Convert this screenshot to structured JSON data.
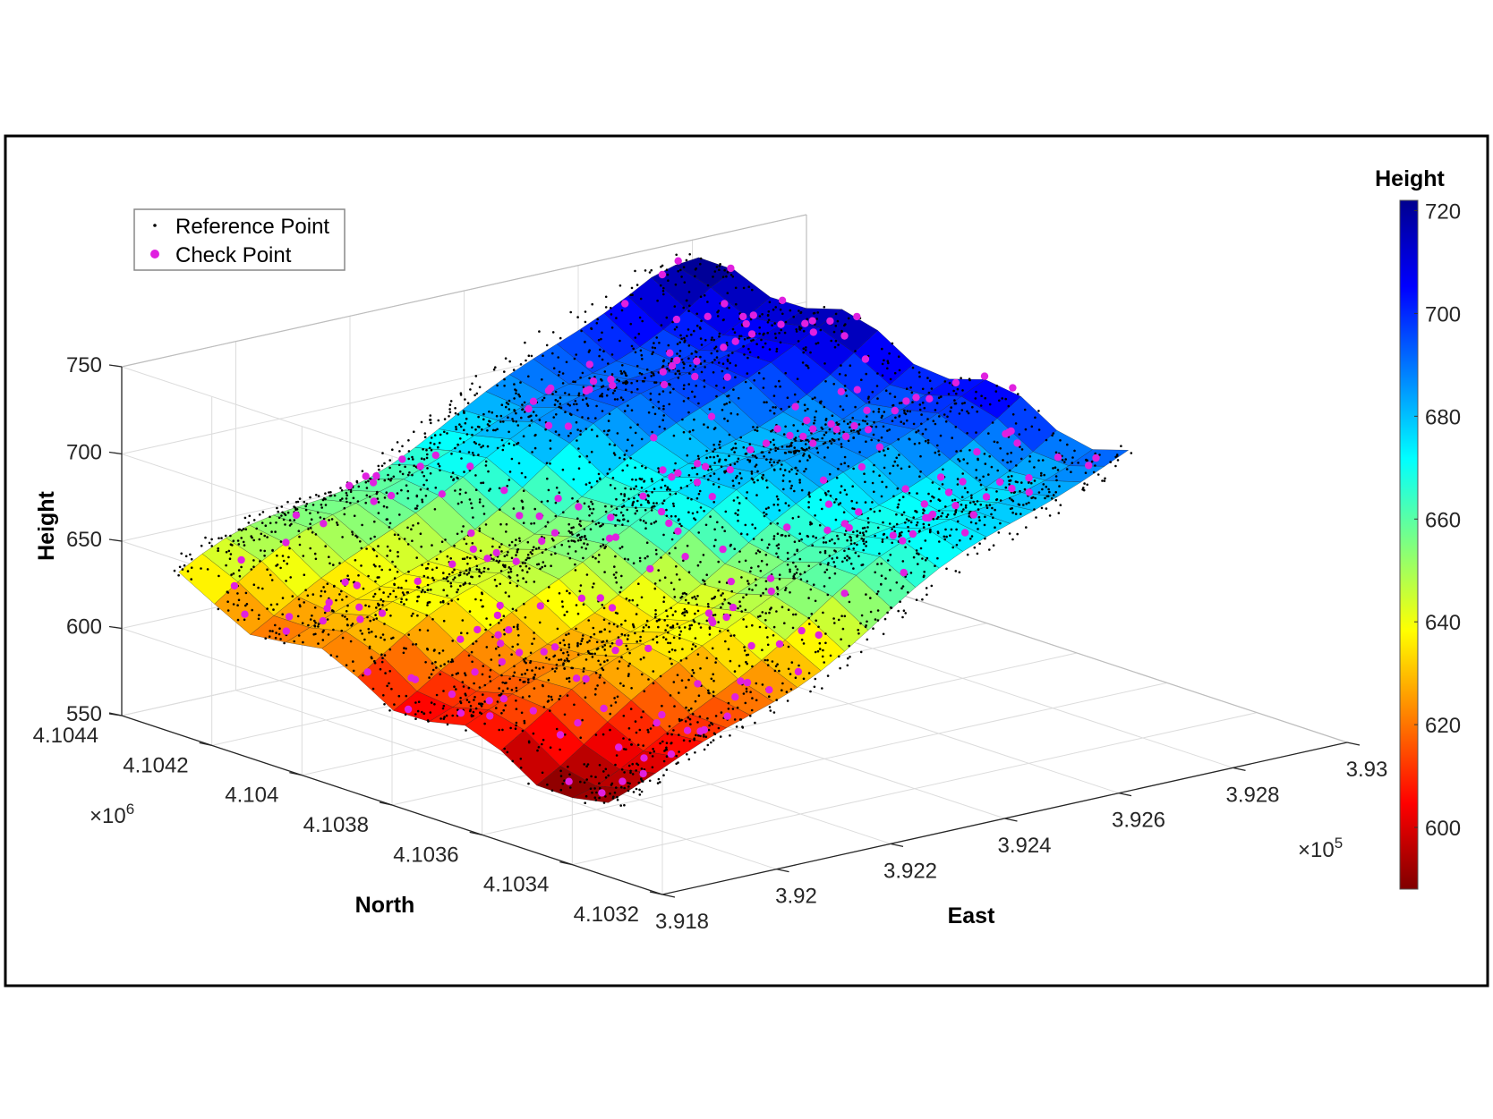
{
  "chart_data": {
    "type": "surface3d",
    "title": "",
    "axes": {
      "x": {
        "label": "East",
        "ticks": [
          "3.918",
          "3.92",
          "3.922",
          "3.924",
          "3.926",
          "3.928",
          "3.93"
        ],
        "ticks_values": [
          3.918,
          3.92,
          3.922,
          3.924,
          3.926,
          3.928,
          3.93
        ],
        "exponent": "×10",
        "exponent_power": "5",
        "range": [
          3.918,
          3.93
        ]
      },
      "y": {
        "label": "North",
        "ticks": [
          "4.1032",
          "4.1034",
          "4.1036",
          "4.1038",
          "4.104",
          "4.1042",
          "4.1044"
        ],
        "ticks_values": [
          4.1032,
          4.1034,
          4.1036,
          4.1038,
          4.104,
          4.1042,
          4.1044
        ],
        "exponent": "×10",
        "exponent_power": "6",
        "range": [
          4.1032,
          4.1044
        ]
      },
      "z": {
        "label": "Height",
        "ticks": [
          "550",
          "600",
          "650",
          "700",
          "750"
        ],
        "ticks_values": [
          550,
          600,
          650,
          700,
          750
        ],
        "range": [
          550,
          750
        ]
      }
    },
    "colorbar": {
      "label": "Height",
      "ticks": [
        "600",
        "620",
        "640",
        "660",
        "680",
        "700",
        "720"
      ],
      "ticks_values": [
        600,
        620,
        640,
        660,
        680,
        700,
        720
      ],
      "range": [
        588,
        722
      ],
      "colormap": "jet"
    },
    "legend": {
      "placement": "top-left",
      "entries": [
        {
          "label": "Reference Point",
          "marker": "dot",
          "color": "#000000"
        },
        {
          "label": "Check Point",
          "marker": "circle",
          "color": "#e020e0"
        }
      ]
    },
    "grid": true,
    "surface_profile": {
      "east": [
        3.918,
        3.92,
        3.922,
        3.924,
        3.926,
        3.928,
        3.93
      ],
      "north_at_south_edge": [
        4.1032,
        4.1032,
        4.1032,
        4.1032,
        4.1032,
        4.1032,
        4.1032
      ],
      "height_min": 588,
      "height_max": 722
    }
  }
}
